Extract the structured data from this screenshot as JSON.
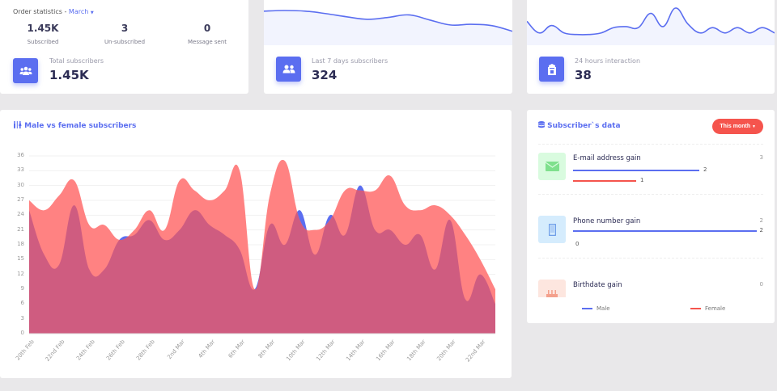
{
  "order_stats": {
    "title": "Order statistics -",
    "month": "March",
    "stats": [
      {
        "value": "1.45K",
        "label": "Subscribed"
      },
      {
        "value": "3",
        "label": "Un-subscribed"
      },
      {
        "value": "0",
        "label": "Message sent"
      }
    ],
    "kpi_label": "Total subscribers",
    "kpi_value": "1.45K",
    "icon": "users-icon"
  },
  "weekly": {
    "kpi_label": "Last 7 days subscribers",
    "kpi_value": "324",
    "icon": "user-friends-icon",
    "sparkline": [
      44,
      45,
      44,
      40,
      35,
      31,
      34,
      38,
      30,
      22,
      23,
      21,
      12
    ]
  },
  "hourly": {
    "kpi_label": "24 hours interaction",
    "kpi_value": "38",
    "icon": "building-icon",
    "sparkline": [
      30,
      8,
      22,
      8,
      5,
      5,
      8,
      18,
      20,
      18,
      45,
      20,
      55,
      25,
      8,
      18,
      8,
      18,
      8,
      18,
      8
    ]
  },
  "gender_chart": {
    "title": "Male vs female subscribers",
    "icon": "male-female-icon",
    "colors": {
      "male": "#5b6ef0",
      "female": "#ff8282",
      "overlap": "#cf5c80"
    }
  },
  "chart_data": {
    "type": "area",
    "title": "Male vs female subscribers",
    "xlabel": "",
    "ylabel": "",
    "ylim": [
      0,
      36
    ],
    "yticks": [
      0,
      3,
      6,
      9,
      12,
      15,
      18,
      21,
      24,
      27,
      30,
      33,
      36
    ],
    "x_labels": [
      "20th Feb",
      "22nd Feb",
      "24th Feb",
      "26th Feb",
      "28th Feb",
      "2nd Mar",
      "4th Mar",
      "6th Mar",
      "8th Mar",
      "10th Mar",
      "12th Mar",
      "14th Mar",
      "16th Mar",
      "18th Mar",
      "20th Mar",
      "22nd Mar"
    ],
    "grid": true,
    "series": [
      {
        "name": "Female",
        "values": [
          27,
          25,
          28,
          31,
          22,
          22,
          19,
          21,
          25,
          21,
          31,
          29,
          27,
          29,
          33,
          9,
          28,
          35,
          23,
          21,
          23,
          29,
          29,
          29,
          32,
          26,
          25,
          26,
          24,
          20,
          15,
          9
        ]
      },
      {
        "name": "Male",
        "values": [
          25,
          16,
          14,
          26,
          13,
          13,
          19,
          20,
          23,
          19,
          21,
          25,
          22,
          20,
          17,
          9,
          22,
          18,
          25,
          16,
          24,
          20,
          30,
          21,
          21,
          18,
          20,
          13,
          23,
          7,
          12,
          6
        ]
      }
    ]
  },
  "subscriber_data": {
    "title": "Subscriber`s data",
    "filter_label": "This month",
    "items": [
      {
        "name": "E-mail address gain",
        "total": "3",
        "male": 2,
        "female": 1,
        "male_label": "2",
        "female_label": "1",
        "icon": "envelope-icon",
        "bg": "#d9fbdf",
        "fg": "#7fe08d"
      },
      {
        "name": "Phone number gain",
        "total": "2",
        "male": 2,
        "female": 0,
        "male_label": "2",
        "female_label": "0",
        "icon": "mobile-icon",
        "bg": "#d5ecfd",
        "fg": "#6f9ee8"
      },
      {
        "name": "Birthdate gain",
        "total": "0",
        "male": 0,
        "female": 0,
        "icon": "birthday-cake-icon",
        "bg": "#fde6df",
        "fg": "#f4a08c"
      }
    ],
    "legend": [
      {
        "label": "Male",
        "color": "#5b6ef0"
      },
      {
        "label": "Female",
        "color": "#f5544d"
      }
    ]
  }
}
